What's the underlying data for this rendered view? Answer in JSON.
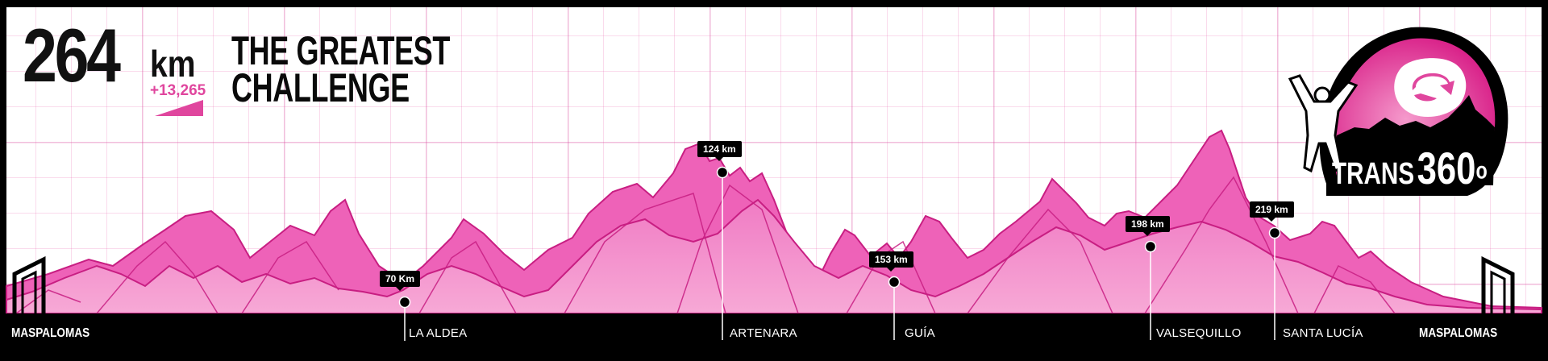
{
  "headline": {
    "distance_value": "264",
    "distance_unit": "km",
    "elevation_gain": "+13,265",
    "slogan_line1": "THE GREATEST",
    "slogan_line2": "CHALLENGE"
  },
  "logo": {
    "text_prefix": "TRANS",
    "text_number": "360",
    "text_degree": "o",
    "icon": "runner-island-logo-icon"
  },
  "route": {
    "start": "MASPALOMAS",
    "finish": "MASPALOMAS",
    "checkpoints": [
      {
        "km_label": "70 Km",
        "town": "LA ALDEA"
      },
      {
        "km_label": "124 km",
        "town": "ARTENARA"
      },
      {
        "km_label": "153 km",
        "town": "GUÍA"
      },
      {
        "km_label": "198 km",
        "town": "VALSEQUILLO"
      },
      {
        "km_label": "219 km",
        "town": "SANTA LUCÍA"
      }
    ]
  },
  "colors": {
    "mountain_fill": "#f49ad0",
    "mountain_mid": "#ee62b8",
    "mountain_dark": "#e33ea1",
    "mountain_line": "#c81e82",
    "accent": "#e0469e",
    "bar": "#000000"
  }
}
